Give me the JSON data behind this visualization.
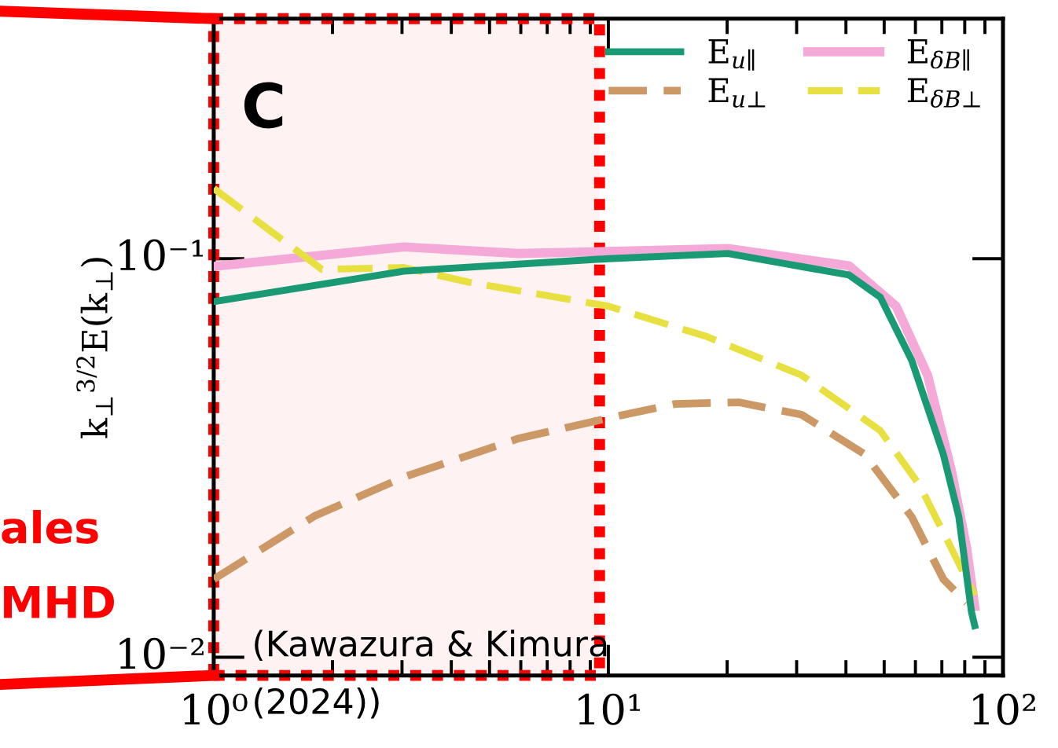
{
  "chart_data": {
    "type": "line",
    "ylabel": "k$_{⊥}$$^{3/2}$E(k$_{⊥}$)",
    "log": "xy",
    "xlim": [
      1,
      100
    ],
    "ylim": [
      0.009,
      0.4
    ],
    "xticks": [
      {
        "value": 1,
        "label": "10⁰"
      },
      {
        "value": 10,
        "label": "10¹"
      },
      {
        "value": 100,
        "label": "10²"
      }
    ],
    "yticks": [
      {
        "value": 0.01,
        "label": "10⁻²"
      },
      {
        "value": 0.1,
        "label": "10⁻¹"
      }
    ],
    "grid": false,
    "legend": "top right",
    "series": [
      {
        "name": "E$_{u∥}$",
        "color": "#1a9a74",
        "line_style": "solid",
        "x": [
          1,
          3.03,
          10,
          20.1,
          40.7,
          48.9,
          58.7,
          70.6,
          77.3,
          83.2,
          84.8
        ],
        "values": [
          0.078,
          0.093,
          0.1,
          0.103,
          0.091,
          0.08,
          0.0556,
          0.0323,
          0.0225,
          0.013,
          0.012
        ]
      },
      {
        "name": "E$_{u⊥}$",
        "color": "#cc9966",
        "line_style": "dashed",
        "x": [
          1,
          1.8,
          3.03,
          5.93,
          10,
          14.8,
          21.4,
          30.9,
          44.6,
          58.7,
          70.6,
          80.9
        ],
        "values": [
          0.0157,
          0.0226,
          0.0283,
          0.0354,
          0.0398,
          0.0432,
          0.0436,
          0.0406,
          0.0323,
          0.0225,
          0.0157,
          0.0137
        ]
      },
      {
        "name": "E$_{δB∥}$",
        "color": "#f5a9d8",
        "line_style": "solid",
        "x": [
          1,
          3.03,
          5.93,
          20.1,
          40.7,
          53.6,
          64.4,
          73.9,
          80.9,
          84.8
        ],
        "values": [
          0.0956,
          0.107,
          0.103,
          0.106,
          0.096,
          0.076,
          0.051,
          0.0296,
          0.0188,
          0.0134
        ]
      },
      {
        "name": "E$_{δB⊥}$",
        "color": "#e8e040",
        "line_style": "dashed",
        "x": [
          1,
          1.88,
          3.03,
          4.5,
          10,
          17.8,
          30.9,
          48.9,
          61.5,
          73.9,
          84.8
        ],
        "values": [
          0.15,
          0.094,
          0.095,
          0.087,
          0.076,
          0.0637,
          0.051,
          0.037,
          0.027,
          0.0188,
          0.0143
        ]
      }
    ],
    "bands": [
      {
        "axis": "x",
        "from": 1,
        "to": 9.5,
        "color": "#ff0000"
      }
    ],
    "annotations": [
      "C",
      "(Kawazura & Kimura (2024))",
      "ales",
      "MHD"
    ]
  }
}
